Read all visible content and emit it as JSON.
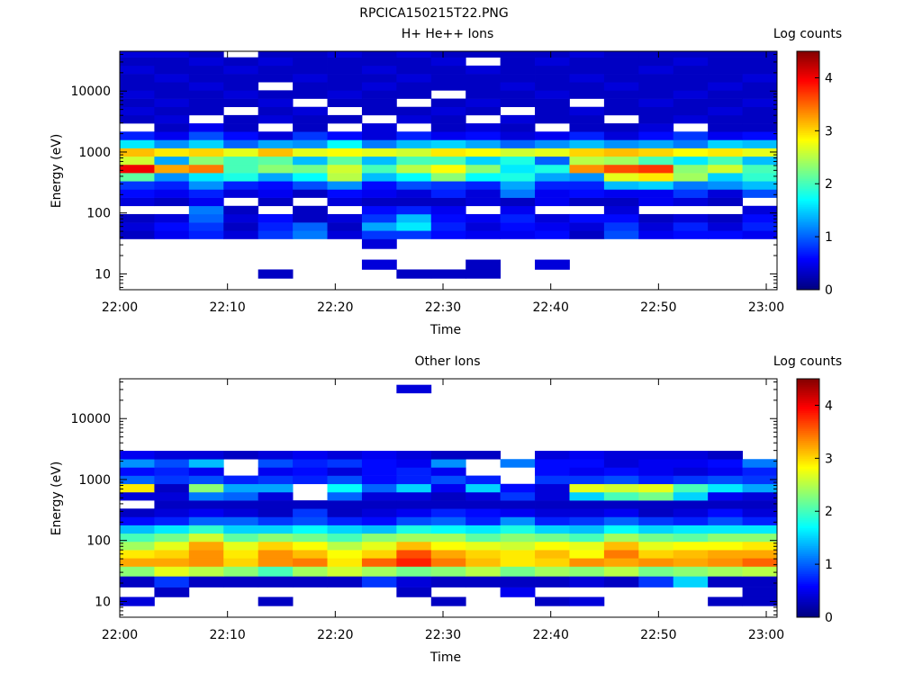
{
  "figure_title": "RPCICA150215T22.PNG",
  "chart_data": [
    {
      "type": "heatmap",
      "title": "H+ He++ Ions",
      "xlabel": "Time",
      "ylabel": "Energy (eV)",
      "xticks": [
        "22:00",
        "22:10",
        "22:20",
        "22:30",
        "22:40",
        "22:50",
        "23:00"
      ],
      "xlim": [
        "22:00",
        "23:01"
      ],
      "yscale": "log",
      "ylim": [
        5.5,
        45000
      ],
      "yticks": [
        10,
        100,
        1000,
        10000
      ],
      "ytick_labels": [
        "10",
        "100",
        "1000",
        "10000"
      ],
      "colorbar": {
        "label": "Log counts",
        "range": [
          0,
          4.5
        ],
        "ticks": [
          0,
          1,
          2,
          3,
          4
        ],
        "colormap": "jet"
      },
      "time_bins": 19,
      "energy_bins": [
        "10",
        "14",
        "21",
        "32",
        "44",
        "60",
        "82",
        "112",
        "153",
        "209",
        "285",
        "390",
        "532",
        "727",
        "993",
        "1357",
        "1853",
        "2531",
        "3457",
        "4723",
        "6451",
        "8812",
        "12036",
        "16441",
        "22458",
        "30676",
        "41902"
      ],
      "log_counts": [
        [
          null,
          null,
          null,
          null,
          0.3,
          null,
          null,
          null,
          0.3,
          0.3,
          0.3,
          null,
          null,
          null,
          null,
          null,
          null,
          null,
          null
        ],
        [
          null,
          null,
          null,
          null,
          null,
          null,
          null,
          0.4,
          null,
          null,
          0.3,
          null,
          0.4,
          null,
          null,
          null,
          null,
          null,
          null
        ],
        [
          null,
          null,
          null,
          null,
          null,
          null,
          null,
          null,
          null,
          null,
          null,
          null,
          null,
          null,
          null,
          null,
          null,
          null,
          null
        ],
        [
          null,
          null,
          null,
          null,
          null,
          null,
          null,
          0.4,
          null,
          null,
          null,
          null,
          null,
          null,
          null,
          null,
          null,
          null,
          null
        ],
        [
          0.3,
          0.5,
          0.7,
          0.4,
          0.8,
          1.1,
          0.4,
          0.8,
          0.8,
          0.6,
          0.5,
          0.5,
          0.6,
          0.3,
          0.9,
          0.5,
          0.6,
          0.6,
          0.5
        ],
        [
          0.4,
          0.6,
          0.8,
          0.3,
          0.7,
          1.0,
          0.3,
          1.3,
          1.6,
          0.7,
          0.4,
          0.6,
          0.5,
          0.4,
          0.8,
          0.4,
          0.7,
          0.4,
          0.7
        ],
        [
          0.3,
          0.4,
          1.0,
          0.4,
          0.6,
          0.3,
          0.4,
          0.8,
          1.4,
          0.6,
          0.5,
          0.7,
          0.4,
          0.6,
          0.6,
          0.3,
          0.4,
          0.3,
          0.6
        ],
        [
          null,
          null,
          1.1,
          0.3,
          null,
          0.3,
          null,
          0.6,
          0.7,
          0.5,
          null,
          0.5,
          null,
          null,
          0.4,
          null,
          null,
          null,
          0.4
        ],
        [
          0.4,
          0.3,
          0.5,
          null,
          0.3,
          null,
          0.4,
          0.3,
          0.3,
          0.3,
          0.4,
          0.3,
          0.5,
          0.3,
          0.3,
          0.5,
          0.4,
          0.3,
          null
        ],
        [
          0.6,
          0.5,
          0.7,
          0.4,
          0.5,
          0.3,
          0.6,
          0.5,
          0.4,
          0.7,
          0.4,
          1.1,
          0.5,
          0.6,
          0.5,
          0.5,
          0.8,
          0.4,
          0.9
        ],
        [
          0.8,
          0.7,
          1.2,
          0.7,
          0.6,
          0.9,
          1.2,
          0.6,
          0.9,
          0.8,
          0.7,
          1.3,
          0.7,
          0.7,
          1.4,
          1.5,
          1.1,
          1.2,
          1.4
        ],
        [
          2.1,
          1.2,
          1.6,
          1.8,
          1.3,
          1.7,
          2.5,
          1.4,
          1.7,
          2.3,
          1.7,
          1.8,
          1.3,
          1.2,
          2.7,
          2.9,
          2.4,
          1.5,
          1.9
        ],
        [
          4.0,
          3.2,
          3.4,
          2.0,
          2.3,
          2.2,
          2.6,
          2.0,
          2.5,
          2.8,
          2.3,
          1.6,
          1.8,
          3.3,
          3.6,
          3.7,
          2.3,
          2.6,
          2.0
        ],
        [
          2.6,
          1.3,
          2.3,
          2.0,
          2.1,
          1.4,
          2.1,
          1.4,
          2.0,
          2.0,
          1.5,
          1.8,
          1.0,
          2.5,
          2.4,
          2.0,
          1.6,
          2.0,
          1.4
        ],
        [
          3.1,
          2.9,
          3.0,
          2.7,
          3.1,
          2.7,
          2.8,
          2.7,
          2.6,
          2.9,
          2.8,
          2.6,
          2.7,
          3.0,
          3.1,
          3.0,
          2.8,
          2.9,
          2.7
        ],
        [
          1.6,
          1.2,
          1.5,
          1.0,
          1.3,
          1.2,
          1.7,
          1.1,
          1.4,
          1.5,
          1.3,
          1.0,
          1.2,
          1.4,
          1.2,
          1.3,
          1.1,
          1.5,
          1.4
        ],
        [
          0.7,
          0.5,
          0.9,
          0.6,
          0.4,
          0.8,
          0.6,
          0.4,
          0.7,
          0.5,
          0.6,
          0.4,
          0.5,
          0.7,
          0.4,
          0.6,
          0.8,
          0.5,
          0.6
        ],
        [
          null,
          0.3,
          0.5,
          0.3,
          null,
          0.3,
          null,
          0.4,
          null,
          0.3,
          0.4,
          0.3,
          null,
          0.3,
          0.3,
          0.4,
          null,
          0.3,
          0.3
        ],
        [
          0.3,
          0.4,
          null,
          0.3,
          0.4,
          0.3,
          0.3,
          null,
          0.4,
          0.3,
          null,
          0.4,
          0.3,
          0.3,
          null,
          0.3,
          0.4,
          0.3,
          0.3
        ],
        [
          0.4,
          0.3,
          0.3,
          null,
          0.3,
          0.4,
          null,
          0.3,
          0.3,
          0.4,
          0.3,
          null,
          0.3,
          0.4,
          0.3,
          0.3,
          0.3,
          0.4,
          0.3
        ],
        [
          0.3,
          0.4,
          0.3,
          0.3,
          0.4,
          null,
          0.3,
          0.3,
          null,
          0.3,
          0.4,
          0.3,
          0.3,
          null,
          0.3,
          0.4,
          0.3,
          0.3,
          0.4
        ],
        [
          0.4,
          0.3,
          0.3,
          0.4,
          0.3,
          0.3,
          0.4,
          0.3,
          0.3,
          null,
          0.3,
          0.3,
          0.4,
          0.3,
          0.3,
          0.3,
          0.4,
          0.3,
          0.3
        ],
        [
          0.3,
          0.3,
          0.4,
          0.3,
          null,
          0.3,
          0.3,
          0.4,
          0.3,
          0.3,
          0.3,
          0.4,
          0.3,
          0.3,
          0.4,
          0.3,
          0.3,
          0.4,
          0.3
        ],
        [
          0.3,
          0.4,
          0.3,
          0.3,
          0.3,
          0.4,
          0.3,
          0.3,
          0.4,
          0.3,
          0.3,
          0.3,
          0.3,
          0.4,
          0.3,
          0.3,
          0.3,
          0.3,
          0.4
        ],
        [
          0.4,
          0.3,
          0.3,
          0.4,
          0.3,
          0.3,
          0.3,
          0.4,
          0.3,
          0.3,
          0.4,
          0.3,
          0.3,
          0.3,
          0.3,
          0.4,
          0.3,
          0.3,
          0.3
        ],
        [
          0.3,
          0.3,
          0.4,
          0.3,
          0.4,
          0.3,
          0.3,
          0.3,
          0.3,
          0.4,
          null,
          0.3,
          0.4,
          0.3,
          0.3,
          0.3,
          0.4,
          0.3,
          0.3
        ],
        [
          0.4,
          0.4,
          0.3,
          null,
          0.3,
          0.3,
          0.4,
          0.3,
          0.4,
          0.3,
          0.3,
          0.3,
          0.3,
          0.4,
          0.3,
          0.3,
          0.3,
          0.3,
          0.3
        ]
      ]
    },
    {
      "type": "heatmap",
      "title": "Other Ions",
      "xlabel": "Time",
      "ylabel": "Energy (eV)",
      "xticks": [
        "22:00",
        "22:10",
        "22:20",
        "22:30",
        "22:40",
        "22:50",
        "23:00"
      ],
      "xlim": [
        "22:00",
        "23:01"
      ],
      "yscale": "log",
      "ylim": [
        5.5,
        45000
      ],
      "yticks": [
        10,
        100,
        1000,
        10000
      ],
      "ytick_labels": [
        "10",
        "100",
        "1000",
        "10000"
      ],
      "colorbar": {
        "label": "Log counts",
        "range": [
          0,
          4.5
        ],
        "ticks": [
          0,
          1,
          2,
          3,
          4
        ],
        "colormap": "jet"
      },
      "time_bins": 19,
      "energy_bins": [
        "10",
        "14",
        "21",
        "32",
        "44",
        "60",
        "82",
        "112",
        "153",
        "209",
        "285",
        "390",
        "532",
        "727",
        "993",
        "1357",
        "1853",
        "2531",
        "3457",
        "4723",
        "6451",
        "8812",
        "12036",
        "16441",
        "22458",
        "30676",
        "41902"
      ],
      "log_counts": [
        [
          0.4,
          null,
          null,
          null,
          0.3,
          null,
          null,
          null,
          null,
          0.3,
          null,
          null,
          0.3,
          0.4,
          null,
          null,
          null,
          0.3,
          0.3
        ],
        [
          null,
          0.3,
          null,
          null,
          null,
          null,
          null,
          null,
          0.3,
          null,
          null,
          0.5,
          null,
          null,
          null,
          null,
          null,
          null,
          0.3
        ],
        [
          0.3,
          0.8,
          0.3,
          0.3,
          0.3,
          0.3,
          0.3,
          0.8,
          0.4,
          0.3,
          0.3,
          0.3,
          0.3,
          0.4,
          0.3,
          0.8,
          1.5,
          0.3,
          0.3
        ],
        [
          2.3,
          2.7,
          2.5,
          2.3,
          2.0,
          2.4,
          2.6,
          2.4,
          2.2,
          2.3,
          2.5,
          2.2,
          2.4,
          2.3,
          2.5,
          2.2,
          2.3,
          2.4,
          2.5
        ],
        [
          3.2,
          3.2,
          3.3,
          3.0,
          3.3,
          3.4,
          2.9,
          3.5,
          3.8,
          3.4,
          3.1,
          2.9,
          3.0,
          3.3,
          3.2,
          3.3,
          3.2,
          3.3,
          3.5
        ],
        [
          2.9,
          3.0,
          3.3,
          2.9,
          3.3,
          3.1,
          2.8,
          3.0,
          3.6,
          3.2,
          3.0,
          2.9,
          3.1,
          2.8,
          3.4,
          3.0,
          3.1,
          3.2,
          3.2
        ],
        [
          2.4,
          2.7,
          3.2,
          2.7,
          3.0,
          2.8,
          2.5,
          2.7,
          3.1,
          2.8,
          2.7,
          2.6,
          2.8,
          2.7,
          3.1,
          2.7,
          2.8,
          2.8,
          2.9
        ],
        [
          2.0,
          2.2,
          2.6,
          2.1,
          2.3,
          2.2,
          2.0,
          2.3,
          2.4,
          2.4,
          2.1,
          2.3,
          2.2,
          2.0,
          2.4,
          2.2,
          2.1,
          2.3,
          2.3
        ],
        [
          1.4,
          1.6,
          1.9,
          1.5,
          1.5,
          1.7,
          1.5,
          1.4,
          1.8,
          1.7,
          1.6,
          1.8,
          1.5,
          1.4,
          1.7,
          1.5,
          1.6,
          1.6,
          1.6
        ],
        [
          0.6,
          0.7,
          1.0,
          1.0,
          0.8,
          0.9,
          0.7,
          0.6,
          0.9,
          1.0,
          0.7,
          1.2,
          0.7,
          0.8,
          1.0,
          0.8,
          0.7,
          0.9,
          0.7
        ],
        [
          0.3,
          0.4,
          0.5,
          0.4,
          0.3,
          0.8,
          0.3,
          0.4,
          0.5,
          0.7,
          0.6,
          0.5,
          0.4,
          0.4,
          0.5,
          0.3,
          0.4,
          0.6,
          0.4
        ],
        [
          null,
          0.3,
          0.3,
          0.3,
          0.3,
          0.3,
          0.3,
          0.3,
          0.3,
          0.3,
          0.3,
          0.3,
          0.3,
          0.3,
          0.3,
          0.3,
          0.3,
          0.3,
          0.3
        ],
        [
          0.4,
          0.4,
          1.1,
          1.0,
          0.4,
          null,
          1.0,
          0.4,
          0.4,
          0.3,
          0.4,
          0.8,
          0.4,
          1.5,
          2.0,
          2.2,
          1.5,
          0.5,
          0.4
        ],
        [
          2.9,
          0.3,
          2.3,
          1.3,
          1.3,
          null,
          1.7,
          1.0,
          1.5,
          0.5,
          1.5,
          0.6,
          0.4,
          2.7,
          2.6,
          2.7,
          2.0,
          1.6,
          1.3
        ],
        [
          1.0,
          0.8,
          0.9,
          0.7,
          0.8,
          0.7,
          0.9,
          0.6,
          0.7,
          0.9,
          0.7,
          null,
          0.8,
          0.8,
          0.9,
          0.7,
          0.8,
          0.9,
          0.8
        ],
        [
          0.6,
          0.7,
          0.5,
          null,
          0.5,
          0.6,
          0.4,
          0.6,
          0.7,
          0.5,
          null,
          null,
          0.6,
          0.5,
          0.6,
          0.5,
          0.4,
          0.5,
          0.7
        ],
        [
          1.2,
          0.9,
          1.4,
          null,
          0.9,
          0.7,
          0.8,
          0.6,
          0.5,
          1.2,
          null,
          1.1,
          0.6,
          0.6,
          0.4,
          0.5,
          0.5,
          0.6,
          1.1
        ],
        [
          0.5,
          0.4,
          0.4,
          0.3,
          0.4,
          0.5,
          0.4,
          0.5,
          0.4,
          0.3,
          0.3,
          null,
          0.4,
          0.5,
          0.4,
          0.4,
          0.4,
          0.3,
          null
        ],
        [
          null,
          null,
          null,
          null,
          null,
          null,
          null,
          null,
          null,
          null,
          null,
          null,
          null,
          null,
          null,
          null,
          null,
          null,
          null
        ],
        [
          null,
          null,
          null,
          null,
          null,
          null,
          null,
          null,
          null,
          null,
          null,
          null,
          null,
          null,
          null,
          null,
          null,
          null,
          null
        ],
        [
          null,
          null,
          null,
          null,
          null,
          null,
          null,
          null,
          null,
          null,
          null,
          null,
          null,
          null,
          null,
          null,
          null,
          null,
          null
        ],
        [
          null,
          null,
          null,
          null,
          null,
          null,
          null,
          null,
          null,
          null,
          null,
          null,
          null,
          null,
          null,
          null,
          null,
          null,
          null
        ],
        [
          null,
          null,
          null,
          null,
          null,
          null,
          null,
          null,
          null,
          null,
          null,
          null,
          null,
          null,
          null,
          null,
          null,
          null,
          null
        ],
        [
          null,
          null,
          null,
          null,
          null,
          null,
          null,
          null,
          null,
          null,
          null,
          null,
          null,
          null,
          null,
          null,
          null,
          null,
          null
        ],
        [
          null,
          null,
          null,
          null,
          null,
          null,
          null,
          null,
          null,
          null,
          null,
          null,
          null,
          null,
          null,
          null,
          null,
          null,
          null
        ],
        [
          null,
          null,
          null,
          null,
          null,
          null,
          null,
          null,
          0.4,
          null,
          null,
          null,
          null,
          null,
          null,
          null,
          null,
          null,
          null
        ],
        [
          null,
          null,
          null,
          null,
          null,
          null,
          null,
          null,
          null,
          null,
          null,
          null,
          null,
          null,
          null,
          null,
          null,
          null,
          null
        ]
      ]
    }
  ]
}
